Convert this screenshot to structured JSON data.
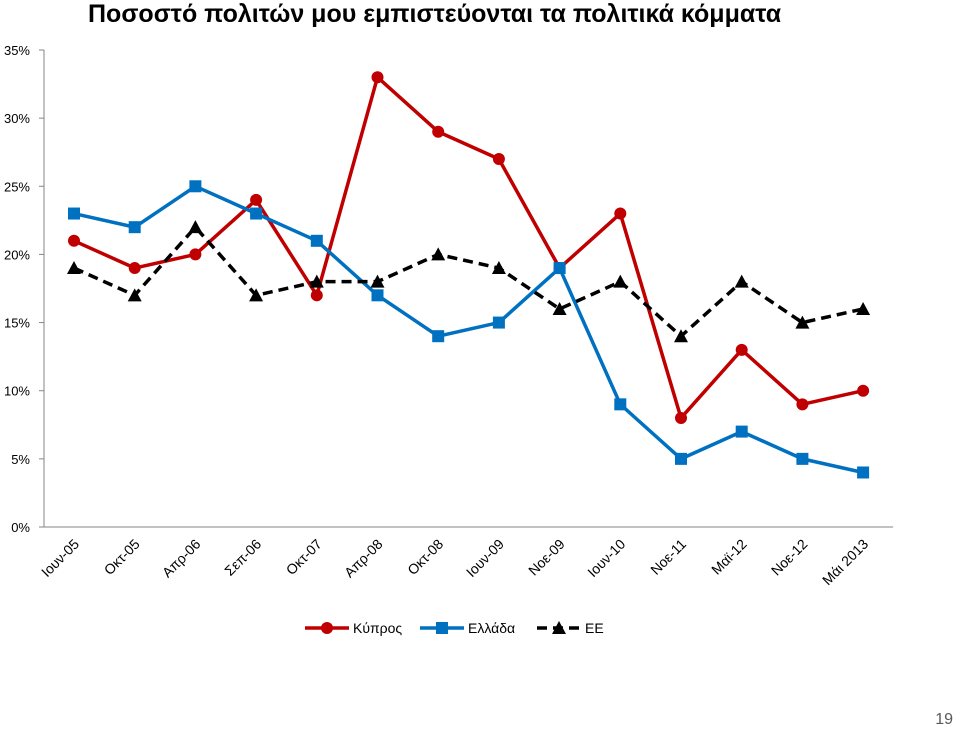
{
  "chart_data": {
    "type": "line",
    "title": "Ποσοστό πολιτών μου εμπιστεύονται τα πολιτικά κόμματα",
    "categories": [
      "Ιουν-05",
      "Οκτ-05",
      "Απρ-06",
      "Σεπ-06",
      "Οκτ-07",
      "Απρ-08",
      "Οκτ-08",
      "Ιουν-09",
      "Νοε-09",
      "Ιουν-10",
      "Νοε-11",
      "Μαϊ-12",
      "Νοε-12",
      "Μάι 2013"
    ],
    "yticks": [
      "0%",
      "5%",
      "10%",
      "15%",
      "20%",
      "25%",
      "30%",
      "35%"
    ],
    "ylim": [
      0,
      35
    ],
    "series": [
      {
        "name": "Κύπρος",
        "color": "#C00000",
        "marker": "circle",
        "dash": false,
        "values": [
          21,
          19,
          20,
          24,
          17,
          33,
          29,
          27,
          19,
          23,
          8,
          13,
          9,
          10
        ]
      },
      {
        "name": "Ελλάδα",
        "color": "#0070C0",
        "marker": "square",
        "dash": false,
        "values": [
          23,
          22,
          25,
          23,
          21,
          17,
          14,
          15,
          19,
          9,
          5,
          7,
          5,
          4
        ]
      },
      {
        "name": "ΕΕ",
        "color": "#000000",
        "marker": "triangle",
        "dash": true,
        "values": [
          19,
          17,
          22,
          17,
          18,
          18,
          20,
          19,
          16,
          18,
          14,
          18,
          15,
          16
        ]
      }
    ]
  },
  "page_number": "19"
}
